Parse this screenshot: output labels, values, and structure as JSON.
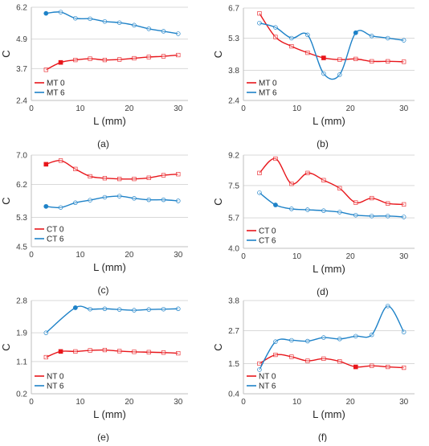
{
  "chart_data": [
    {
      "type": "line",
      "panel_label": "(a)",
      "xlabel": "L (mm)",
      "ylabel": "C",
      "xlim": [
        0,
        32
      ],
      "ylim": [
        2.4,
        6.2
      ],
      "xticks": [
        0,
        10,
        20,
        30
      ],
      "yticks": [
        2.4,
        3.7,
        4.9,
        6.2
      ],
      "ytick_labels": [
        "2.4",
        "3.7",
        "4.9",
        "6.2"
      ],
      "legend": "bottom-left",
      "series": [
        {
          "name": "MT 0",
          "color": "#e8161b",
          "marker": "square",
          "filled_index": 1,
          "x": [
            3,
            6,
            9,
            12,
            15,
            18,
            21,
            24,
            27,
            30
          ],
          "y": [
            3.65,
            3.95,
            4.05,
            4.1,
            4.05,
            4.07,
            4.12,
            4.17,
            4.2,
            4.25
          ]
        },
        {
          "name": "MT 6",
          "color": "#1e82c8",
          "marker": "circle",
          "filled_index": 0,
          "x": [
            3,
            6,
            9,
            12,
            15,
            18,
            21,
            24,
            27,
            30
          ],
          "y": [
            5.95,
            6.0,
            5.75,
            5.73,
            5.62,
            5.57,
            5.47,
            5.32,
            5.22,
            5.12
          ]
        }
      ]
    },
    {
      "type": "line",
      "panel_label": "(b)",
      "xlabel": "L (mm)",
      "ylabel": "C",
      "xlim": [
        0,
        32
      ],
      "ylim": [
        2.4,
        6.7
      ],
      "xticks": [
        0,
        10,
        20,
        30
      ],
      "yticks": [
        2.4,
        3.8,
        5.3,
        6.7
      ],
      "ytick_labels": [
        "2.4",
        "3.8",
        "5.3",
        "6.7"
      ],
      "legend": "bottom-left",
      "series": [
        {
          "name": "MT 0",
          "color": "#e8161b",
          "marker": "square",
          "filled_index": 4,
          "x": [
            3,
            6,
            9,
            12,
            15,
            18,
            21,
            24,
            27,
            30
          ],
          "y": [
            6.45,
            5.35,
            4.92,
            4.62,
            4.38,
            4.3,
            4.33,
            4.22,
            4.22,
            4.2
          ]
        },
        {
          "name": "MT 6",
          "color": "#1e82c8",
          "marker": "circle",
          "filled_index": 6,
          "x": [
            3,
            6,
            9,
            12,
            15,
            18,
            21,
            24,
            27,
            30
          ],
          "y": [
            6.0,
            5.8,
            5.3,
            5.45,
            3.65,
            3.6,
            5.55,
            5.4,
            5.3,
            5.2
          ]
        }
      ]
    },
    {
      "type": "line",
      "panel_label": "(c)",
      "xlabel": "L (mm)",
      "ylabel": "C",
      "xlim": [
        0,
        32
      ],
      "ylim": [
        4.5,
        7.0
      ],
      "xticks": [
        0,
        10,
        20,
        30
      ],
      "yticks": [
        4.5,
        5.3,
        6.2,
        7.0
      ],
      "ytick_labels": [
        "4.5",
        "5.3",
        "6.2",
        "7.0"
      ],
      "legend": "bottom-left",
      "series": [
        {
          "name": "CT 0",
          "color": "#e8161b",
          "marker": "square",
          "filled_index": 0,
          "x": [
            3,
            6,
            9,
            12,
            15,
            18,
            21,
            24,
            27,
            30
          ],
          "y": [
            6.75,
            6.85,
            6.62,
            6.42,
            6.37,
            6.35,
            6.35,
            6.38,
            6.45,
            6.48
          ]
        },
        {
          "name": "CT 6",
          "color": "#1e82c8",
          "marker": "circle",
          "filled_index": 0,
          "x": [
            3,
            6,
            9,
            12,
            15,
            18,
            21,
            24,
            27,
            30
          ],
          "y": [
            5.6,
            5.57,
            5.7,
            5.77,
            5.85,
            5.88,
            5.82,
            5.78,
            5.78,
            5.75
          ]
        }
      ]
    },
    {
      "type": "line",
      "panel_label": "(d)",
      "xlabel": "L (mm)",
      "ylabel": "C",
      "xlim": [
        0,
        32
      ],
      "ylim": [
        4.0,
        9.2
      ],
      "xticks": [
        0,
        10,
        20,
        30
      ],
      "yticks": [
        4.0,
        5.7,
        7.5,
        9.2
      ],
      "ytick_labels": [
        "4.0",
        "5.7",
        "7.5",
        "9.2"
      ],
      "legend": "bottom-left",
      "series": [
        {
          "name": "CT 0",
          "color": "#e8161b",
          "marker": "square",
          "filled_index": -1,
          "x": [
            3,
            6,
            9,
            12,
            15,
            18,
            21,
            24,
            27,
            30
          ],
          "y": [
            8.2,
            9.0,
            7.6,
            8.2,
            7.8,
            7.35,
            6.55,
            6.8,
            6.5,
            6.45
          ]
        },
        {
          "name": "CT 6",
          "color": "#1e82c8",
          "marker": "circle",
          "filled_index": 1,
          "x": [
            3,
            6,
            9,
            12,
            15,
            18,
            21,
            24,
            27,
            30
          ],
          "y": [
            7.1,
            6.42,
            6.2,
            6.15,
            6.1,
            6.02,
            5.85,
            5.8,
            5.8,
            5.75
          ]
        }
      ]
    },
    {
      "type": "line",
      "panel_label": "(e)",
      "xlabel": "L (mm)",
      "ylabel": "C",
      "xlim": [
        0,
        32
      ],
      "ylim": [
        0.2,
        2.8
      ],
      "xticks": [
        0,
        10,
        20,
        30
      ],
      "yticks": [
        0.2,
        1.1,
        1.9,
        2.8
      ],
      "ytick_labels": [
        "0.2",
        "1.1",
        "1.9",
        "2.8"
      ],
      "legend": "bottom-left",
      "series": [
        {
          "name": "NT 0",
          "color": "#e8161b",
          "marker": "square",
          "filled_index": 1,
          "x": [
            3,
            6,
            9,
            12,
            15,
            18,
            21,
            24,
            27,
            30
          ],
          "y": [
            1.22,
            1.38,
            1.38,
            1.41,
            1.42,
            1.39,
            1.37,
            1.36,
            1.35,
            1.33
          ]
        },
        {
          "name": "NT 6",
          "color": "#1e82c8",
          "marker": "circle",
          "filled_index": 1,
          "x": [
            3,
            9,
            12,
            15,
            18,
            21,
            24,
            27,
            30
          ],
          "y": [
            1.9,
            2.6,
            2.56,
            2.57,
            2.55,
            2.53,
            2.55,
            2.56,
            2.57
          ]
        }
      ]
    },
    {
      "type": "line",
      "panel_label": "(f)",
      "xlabel": "L (mm)",
      "ylabel": "C",
      "xlim": [
        0,
        32
      ],
      "ylim": [
        0.4,
        3.8
      ],
      "xticks": [
        0,
        10,
        20,
        30
      ],
      "yticks": [
        0.4,
        1.5,
        2.7,
        3.8
      ],
      "ytick_labels": [
        "0.4",
        "1.5",
        "2.7",
        "3.8"
      ],
      "legend": "bottom-left",
      "series": [
        {
          "name": "NT 0",
          "color": "#e8161b",
          "marker": "square",
          "filled_index": 6,
          "x": [
            3,
            6,
            9,
            12,
            15,
            18,
            21,
            24,
            27,
            30
          ],
          "y": [
            1.5,
            1.82,
            1.75,
            1.6,
            1.68,
            1.58,
            1.38,
            1.42,
            1.38,
            1.35
          ]
        },
        {
          "name": "NT 6",
          "color": "#1e82c8",
          "marker": "circle",
          "filled_index": -1,
          "x": [
            3,
            6,
            9,
            12,
            15,
            18,
            21,
            24,
            27,
            30
          ],
          "y": [
            1.28,
            2.3,
            2.35,
            2.32,
            2.45,
            2.4,
            2.5,
            2.55,
            3.6,
            2.65
          ]
        }
      ]
    }
  ]
}
